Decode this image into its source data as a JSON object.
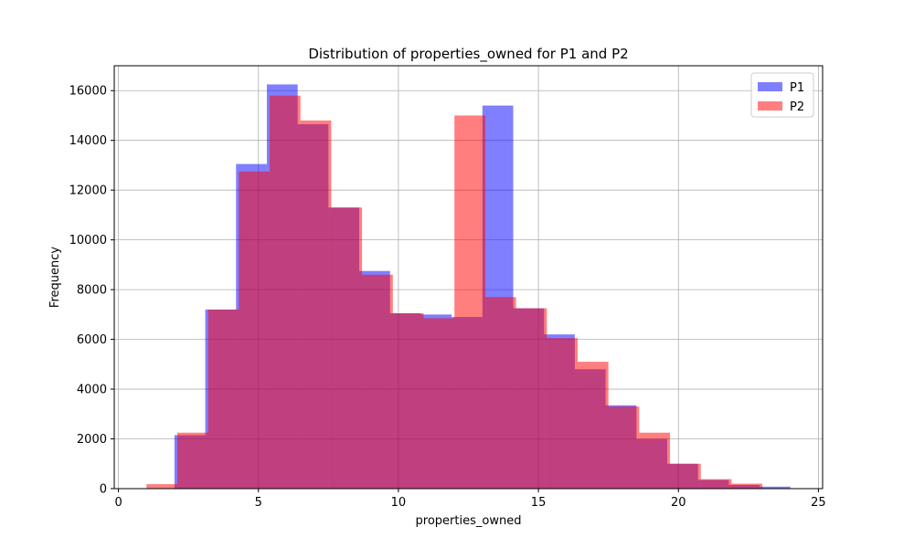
{
  "chart_data": {
    "type": "bar",
    "title": "Distribution of properties_owned for P1 and P2",
    "xlabel": "properties_owned",
    "ylabel": "Frequency",
    "xlim": [
      -0.15,
      25.15
    ],
    "ylim": [
      0,
      17000
    ],
    "xticks": [
      0,
      5,
      10,
      15,
      20,
      25
    ],
    "yticks": [
      0,
      2000,
      4000,
      6000,
      8000,
      10000,
      12000,
      14000,
      16000
    ],
    "grid": true,
    "legend_position": "top-right",
    "series": [
      {
        "name": "P1",
        "color": "#0000ff",
        "opacity": 0.5,
        "bins": [
          {
            "x0": 2.0,
            "x1": 3.1,
            "value": 2150
          },
          {
            "x0": 3.1,
            "x1": 4.2,
            "value": 7200
          },
          {
            "x0": 4.2,
            "x1": 5.3,
            "value": 13050
          },
          {
            "x0": 5.3,
            "x1": 6.4,
            "value": 16250
          },
          {
            "x0": 6.4,
            "x1": 7.5,
            "value": 14650
          },
          {
            "x0": 7.5,
            "x1": 8.6,
            "value": 11300
          },
          {
            "x0": 8.6,
            "x1": 9.7,
            "value": 8750
          },
          {
            "x0": 9.7,
            "x1": 10.8,
            "value": 7050
          },
          {
            "x0": 10.8,
            "x1": 11.9,
            "value": 7000
          },
          {
            "x0": 11.9,
            "x1": 13.0,
            "value": 6900
          },
          {
            "x0": 13.0,
            "x1": 14.1,
            "value": 15400
          },
          {
            "x0": 14.1,
            "x1": 15.2,
            "value": 7250
          },
          {
            "x0": 15.2,
            "x1": 16.3,
            "value": 6200
          },
          {
            "x0": 16.3,
            "x1": 17.4,
            "value": 4800
          },
          {
            "x0": 17.4,
            "x1": 18.5,
            "value": 3350
          },
          {
            "x0": 18.5,
            "x1": 19.6,
            "value": 2000
          },
          {
            "x0": 19.6,
            "x1": 20.7,
            "value": 1000
          },
          {
            "x0": 20.7,
            "x1": 21.8,
            "value": 350
          },
          {
            "x0": 21.8,
            "x1": 22.9,
            "value": 150
          },
          {
            "x0": 22.9,
            "x1": 24.0,
            "value": 80
          }
        ]
      },
      {
        "name": "P2",
        "color": "#ff0000",
        "opacity": 0.5,
        "bins": [
          {
            "x0": 1.0,
            "x1": 2.1,
            "value": 180
          },
          {
            "x0": 2.1,
            "x1": 3.2,
            "value": 2250
          },
          {
            "x0": 3.2,
            "x1": 4.3,
            "value": 7200
          },
          {
            "x0": 4.3,
            "x1": 5.4,
            "value": 12750
          },
          {
            "x0": 5.4,
            "x1": 6.5,
            "value": 15800
          },
          {
            "x0": 6.5,
            "x1": 7.6,
            "value": 14800
          },
          {
            "x0": 7.6,
            "x1": 8.7,
            "value": 11300
          },
          {
            "x0": 8.7,
            "x1": 9.8,
            "value": 8600
          },
          {
            "x0": 9.8,
            "x1": 10.9,
            "value": 7050
          },
          {
            "x0": 10.9,
            "x1": 12.0,
            "value": 6850
          },
          {
            "x0": 12.0,
            "x1": 13.1,
            "value": 15000
          },
          {
            "x0": 13.1,
            "x1": 14.2,
            "value": 7700
          },
          {
            "x0": 14.2,
            "x1": 15.3,
            "value": 7250
          },
          {
            "x0": 15.3,
            "x1": 16.4,
            "value": 6050
          },
          {
            "x0": 16.4,
            "x1": 17.5,
            "value": 5100
          },
          {
            "x0": 17.5,
            "x1": 18.6,
            "value": 3300
          },
          {
            "x0": 18.6,
            "x1": 19.7,
            "value": 2250
          },
          {
            "x0": 19.7,
            "x1": 20.8,
            "value": 1000
          },
          {
            "x0": 20.8,
            "x1": 21.9,
            "value": 380
          },
          {
            "x0": 21.9,
            "x1": 23.0,
            "value": 200
          }
        ]
      }
    ]
  }
}
